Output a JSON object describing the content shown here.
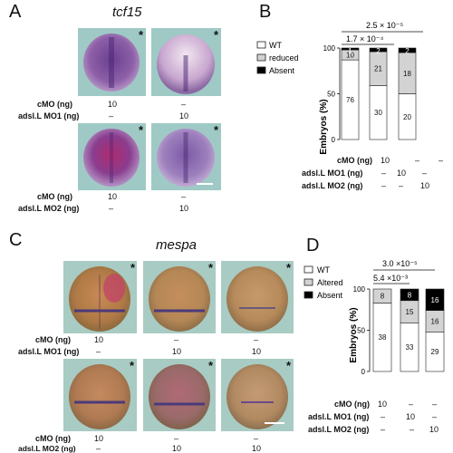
{
  "panelA": {
    "label": "A",
    "gene": "tcf15",
    "rows": [
      {
        "label1": "cMO (ng)",
        "label2": "adsl.L MO1 (ng)",
        "col1": [
          "10",
          "–"
        ],
        "col2": [
          "–",
          "10"
        ]
      },
      {
        "label1": "cMO (ng)",
        "label2": "adsl.L MO2 (ng)",
        "col1": [
          "10",
          "–"
        ],
        "col2": [
          "–",
          "10"
        ]
      }
    ]
  },
  "panelB": {
    "label": "B",
    "legend": [
      "WT",
      "reduced",
      "Absent"
    ],
    "colors": {
      "WT": "#ffffff",
      "reduced": "#d3d3d3",
      "Absent": "#000000"
    },
    "pvals": [
      "2.5 × 10⁻⁵",
      "1.7 × 10⁻⁴"
    ],
    "ylabel": "Embryos (%)",
    "yticks": [
      "0",
      "50",
      "100"
    ],
    "xrows": [
      {
        "label": "cMO (ng)",
        "vals": [
          "10",
          "–",
          "–"
        ]
      },
      {
        "label": "adsl.L MO1 (ng)",
        "vals": [
          "–",
          "10",
          "–"
        ]
      },
      {
        "label": "adsl.L MO2 (ng)",
        "vals": [
          "–",
          "–",
          "10"
        ]
      }
    ]
  },
  "panelC": {
    "label": "C",
    "gene": "mespa",
    "rows": [
      {
        "label1": "cMO (ng)",
        "label2": "adsl.L MO1 (ng)",
        "col1": [
          "10",
          "–"
        ],
        "col2": [
          "–",
          "10"
        ],
        "col3": [
          "–",
          "10"
        ]
      },
      {
        "label1": "cMO (ng)",
        "label2": "adsl.L MO2 (ng)",
        "col1": [
          "10",
          "–"
        ],
        "col2": [
          "–",
          "10"
        ],
        "col3": [
          "–",
          "10"
        ]
      }
    ]
  },
  "panelD": {
    "label": "D",
    "legend": [
      "WT",
      "Altered",
      "Absent"
    ],
    "colors": {
      "WT": "#ffffff",
      "Altered": "#d3d3d3",
      "Absent": "#000000"
    },
    "pvals": [
      "3.0 ×10⁻⁵",
      "5.4 ×10⁻³"
    ],
    "ylabel": "Embryos (%)",
    "yticks": [
      "0",
      "50",
      "100"
    ],
    "xrows": [
      {
        "label": "cMO (ng)",
        "vals": [
          "10",
          "–",
          "–"
        ]
      },
      {
        "label": "adsl.L MO1 (ng)",
        "vals": [
          "–",
          "10",
          "–"
        ]
      },
      {
        "label": "adsl.L MO2 (ng)",
        "vals": [
          "–",
          "–",
          "10"
        ]
      }
    ]
  },
  "chart_data": [
    {
      "type": "bar",
      "stacked": true,
      "ylabel": "Embryos (%)",
      "ylim": [
        0,
        100
      ],
      "categories": [
        "cMO",
        "adsl.L MO1",
        "adsl.L MO2"
      ],
      "series": [
        {
          "name": "WT",
          "values": [
            87,
            59,
            50
          ]
        },
        {
          "name": "reduced",
          "values": [
            11,
            37,
            45
          ]
        },
        {
          "name": "Absent",
          "values": [
            2,
            4,
            5
          ]
        }
      ],
      "counts": [
        [
          76,
          10,
          1
        ],
        [
          30,
          21,
          2
        ],
        [
          20,
          18,
          2
        ]
      ]
    },
    {
      "type": "bar",
      "stacked": true,
      "ylabel": "Embryos (%)",
      "ylim": [
        0,
        100
      ],
      "categories": [
        "cMO",
        "adsl.L MO1",
        "adsl.L MO2"
      ],
      "series": [
        {
          "name": "WT",
          "values": [
            83,
            59,
            48
          ]
        },
        {
          "name": "Altered",
          "values": [
            17,
            27,
            26
          ]
        },
        {
          "name": "Absent",
          "values": [
            0,
            14,
            26
          ]
        }
      ],
      "counts": [
        [
          38,
          8,
          0
        ],
        [
          33,
          15,
          8
        ],
        [
          29,
          16,
          16
        ]
      ]
    }
  ]
}
